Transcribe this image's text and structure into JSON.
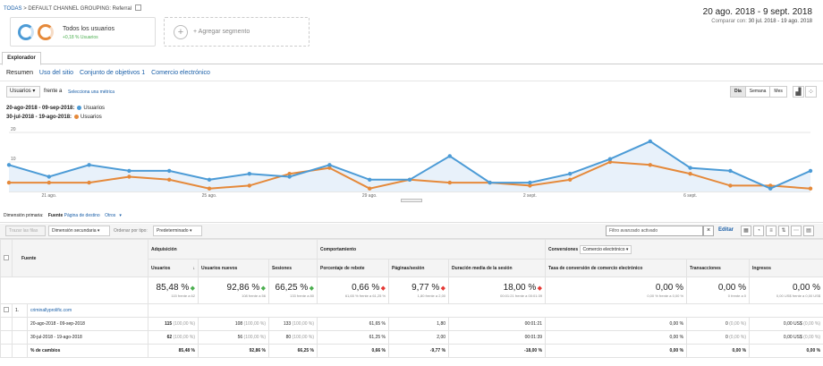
{
  "breadcrumb": {
    "root": "TODAS",
    "sep": ">",
    "view": "DEFAULT CHANNEL GROUPING: Referral"
  },
  "date": {
    "range": "20 ago. 2018 - 9 sept. 2018",
    "compare_label": "Comparar con:",
    "compare_range": "30 jul. 2018 - 19 ago. 2018"
  },
  "segments": {
    "seg1_title": "Todos los usuarios",
    "seg1_sub": "+0,18 % Usuarios",
    "add_label": "+ Agregar segmento"
  },
  "explorer": {
    "tab": "Explorador",
    "subtabs": [
      "Resumen",
      "Uso del sitio",
      "Conjunto de objetivos 1",
      "Comercio electrónico"
    ]
  },
  "chart_controls": {
    "metric": "Usuarios",
    "vs": "frente a",
    "select_metric": "Selecciona una métrica",
    "periods": [
      "Día",
      "Semana",
      "Mes"
    ]
  },
  "legend": [
    {
      "range": "20-ago-2018 - 09-sep-2018:",
      "label": "Usuarios",
      "color": "#4c9bd6"
    },
    {
      "range": "30-jul-2018 - 19-ago-2018:",
      "label": "Usuarios",
      "color": "#e5893a"
    }
  ],
  "chart_data": {
    "type": "line",
    "ylim": [
      0,
      20
    ],
    "yticks": [
      "20",
      "10"
    ],
    "xticks": [
      "21 ago.",
      "25 ago.",
      "29 ago.",
      "2 sept.",
      "6 sept."
    ],
    "series": [
      {
        "name": "20-ago-2018 - 09-sep-2018: Usuarios",
        "color": "#4c9bd6",
        "values": [
          9,
          5,
          9,
          7,
          7,
          4,
          6,
          5,
          9,
          4,
          4,
          12,
          3,
          3,
          6,
          11,
          17,
          8,
          7,
          1,
          7
        ]
      },
      {
        "name": "30-jul-2018 - 19-ago-2018: Usuarios",
        "color": "#e5893a",
        "values": [
          3,
          3,
          3,
          5,
          4,
          1,
          2,
          6,
          8,
          1,
          4,
          3,
          3,
          2,
          4,
          10,
          9,
          6,
          2,
          2,
          1
        ]
      }
    ]
  },
  "dimension": {
    "label": "Dimensión primaria:",
    "active": "Fuente",
    "options": [
      "Página de destino",
      "Otros"
    ]
  },
  "toolbar": {
    "plot_rows": "Trazar las filas",
    "secondary": "Dimensión secundaria",
    "sort_label": "Ordenar por tipo:",
    "sort_value": "Predeterminado",
    "filter": "Filtro avanzado activado",
    "edit": "Editar"
  },
  "table": {
    "groups": {
      "acq": "Adquisición",
      "beh": "Comportamiento",
      "conv": "Conversiones",
      "conv_select": "Comercio electrónico"
    },
    "headers": {
      "source": "Fuente",
      "users": "Usuarios",
      "new_users": "Usuarios nuevos",
      "sessions": "Sesiones",
      "bounce": "Porcentaje de rebote",
      "pages": "Páginas/sesión",
      "duration": "Duración media de la sesión",
      "conv_rate": "Tasa de conversión de comercio electrónico",
      "transactions": "Transacciones",
      "revenue": "Ingresos"
    },
    "summary": {
      "users": "85,48 %",
      "users_sub": "115 frente a 62",
      "new_users": "92,86 %",
      "new_users_sub": "108 frente a 56",
      "sessions": "66,25 %",
      "sessions_sub": "133 frente a 80",
      "bounce": "0,66 %",
      "bounce_sub": "61,65 % frente a 61,25 %",
      "pages": "9,77 %",
      "pages_sub": "1,80 frente a 2,00",
      "duration": "18,00 %",
      "duration_sub": "00:01:21 frente a 00:01:39",
      "conv_rate": "0,00 %",
      "conv_rate_sub": "0,00 % frente a 0,00 %",
      "transactions": "0,00 %",
      "transactions_sub": "0 frente a 0",
      "revenue": "0,00 %",
      "revenue_sub": "0,00 US$ frente a 0,00 US$"
    },
    "row1": {
      "index": "1.",
      "source": "criminallyprolific.com"
    },
    "rows": [
      {
        "label": "20-ago-2018 - 09-sep-2018",
        "users": "115",
        "users_pct": "(100,00 %)",
        "new_users": "108",
        "new_users_pct": "(100,00 %)",
        "sessions": "133",
        "sessions_pct": "(100,00 %)",
        "bounce": "61,65 %",
        "pages": "1,80",
        "duration": "00:01:21",
        "conv_rate": "0,00 %",
        "transactions": "0",
        "transactions_pct": "(0,00 %)",
        "revenue": "0,00 US$",
        "revenue_pct": "(0,00 %)"
      },
      {
        "label": "30-jul-2018 - 19-ago-2018",
        "users": "62",
        "users_pct": "(100,00 %)",
        "new_users": "56",
        "new_users_pct": "(100,00 %)",
        "sessions": "80",
        "sessions_pct": "(100,00 %)",
        "bounce": "61,25 %",
        "pages": "2,00",
        "duration": "00:01:39",
        "conv_rate": "0,00 %",
        "transactions": "0",
        "transactions_pct": "(0,00 %)",
        "revenue": "0,00 US$",
        "revenue_pct": "(0,00 %)"
      },
      {
        "label": "% de cambios",
        "users": "85,48 %",
        "new_users": "92,86 %",
        "sessions": "66,25 %",
        "bounce": "0,66 %",
        "pages": "-9,77 %",
        "duration": "-18,00 %",
        "conv_rate": "0,00 %",
        "transactions": "0,00 %",
        "revenue": "0,00 %"
      }
    ]
  }
}
